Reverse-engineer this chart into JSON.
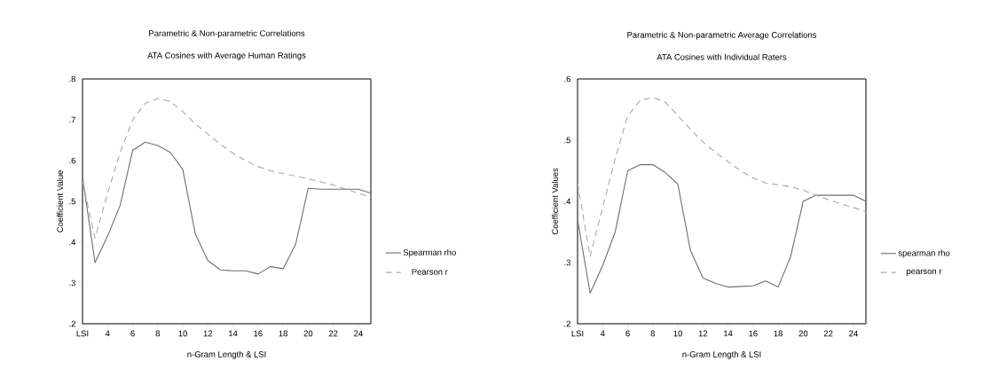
{
  "chart_data": [
    {
      "type": "line",
      "title": "Parametric & Non-parametric Correlations",
      "subtitle": "ATA Cosines with Average Human Ratings",
      "xlabel": "n-Gram Length & LSI",
      "ylabel": "Coefficient Value",
      "x": [
        2,
        3,
        4,
        5,
        6,
        7,
        8,
        9,
        10,
        11,
        12,
        13,
        14,
        15,
        16,
        17,
        18,
        19,
        20,
        21,
        22,
        23,
        24,
        25
      ],
      "xlim": [
        2,
        25
      ],
      "xticks": [
        {
          "value": 2,
          "label": "LSI"
        },
        4,
        6,
        8,
        10,
        12,
        14,
        16,
        18,
        20,
        22,
        24
      ],
      "ylim": [
        0.2,
        0.8
      ],
      "yticks": [
        {
          "value": 0.2,
          "label": ".2"
        },
        {
          "value": 0.3,
          "label": ".3"
        },
        {
          "value": 0.4,
          "label": ".4"
        },
        {
          "value": 0.5,
          "label": ".5"
        },
        {
          "value": 0.6,
          "label": ".6"
        },
        {
          "value": 0.7,
          "label": ".7"
        },
        {
          "value": 0.8,
          "label": ".8"
        }
      ],
      "legend": "right",
      "series": [
        {
          "name": "Spearman rho",
          "color": "#6e6e6e",
          "line_style": "solid",
          "values": [
            0.56,
            0.35,
            0.415,
            0.49,
            0.625,
            0.645,
            0.637,
            0.62,
            0.578,
            0.42,
            0.355,
            0.332,
            0.33,
            0.33,
            0.322,
            0.34,
            0.335,
            0.395,
            0.532,
            0.53,
            0.53,
            0.53,
            0.53,
            0.52
          ]
        },
        {
          "name": "Pearson r",
          "color": "#a8a8a8",
          "line_style": "dashed",
          "values": [
            0.55,
            0.41,
            0.52,
            0.62,
            0.7,
            0.74,
            0.752,
            0.745,
            0.72,
            0.69,
            0.665,
            0.64,
            0.618,
            0.6,
            0.585,
            0.575,
            0.568,
            0.562,
            0.555,
            0.548,
            0.54,
            0.53,
            0.52,
            0.51
          ]
        }
      ]
    },
    {
      "type": "line",
      "title": "Parametric & Non-parametric Average Correlations",
      "subtitle": "ATA Cosines with Individual Raters",
      "xlabel": "n-Gram Length & LSI",
      "ylabel": "Coefficient Values",
      "x": [
        2,
        3,
        4,
        5,
        6,
        7,
        8,
        9,
        10,
        11,
        12,
        13,
        14,
        15,
        16,
        17,
        18,
        19,
        20,
        21,
        22,
        23,
        24,
        25
      ],
      "xlim": [
        2,
        25
      ],
      "xticks": [
        {
          "value": 2,
          "label": "LSI"
        },
        4,
        6,
        8,
        10,
        12,
        14,
        16,
        18,
        20,
        22,
        24
      ],
      "ylim": [
        0.2,
        0.6
      ],
      "yticks": [
        {
          "value": 0.2,
          "label": ".2"
        },
        {
          "value": 0.3,
          "label": ".3"
        },
        {
          "value": 0.4,
          "label": ".4"
        },
        {
          "value": 0.5,
          "label": ".5"
        },
        {
          "value": 0.6,
          "label": ".6"
        }
      ],
      "legend": "right",
      "series": [
        {
          "name": "spearman rho",
          "color": "#6e6e6e",
          "line_style": "solid",
          "values": [
            0.37,
            0.25,
            0.295,
            0.35,
            0.45,
            0.46,
            0.46,
            0.447,
            0.428,
            0.32,
            0.275,
            0.266,
            0.26,
            0.261,
            0.262,
            0.27,
            0.26,
            0.31,
            0.4,
            0.41,
            0.41,
            0.41,
            0.41,
            0.4
          ]
        },
        {
          "name": "pearson r",
          "color": "#a8a8a8",
          "line_style": "dashed",
          "values": [
            0.43,
            0.31,
            0.39,
            0.47,
            0.54,
            0.565,
            0.57,
            0.562,
            0.54,
            0.518,
            0.497,
            0.48,
            0.465,
            0.45,
            0.438,
            0.43,
            0.427,
            0.424,
            0.418,
            0.41,
            0.403,
            0.396,
            0.39,
            0.383
          ]
        }
      ]
    }
  ]
}
